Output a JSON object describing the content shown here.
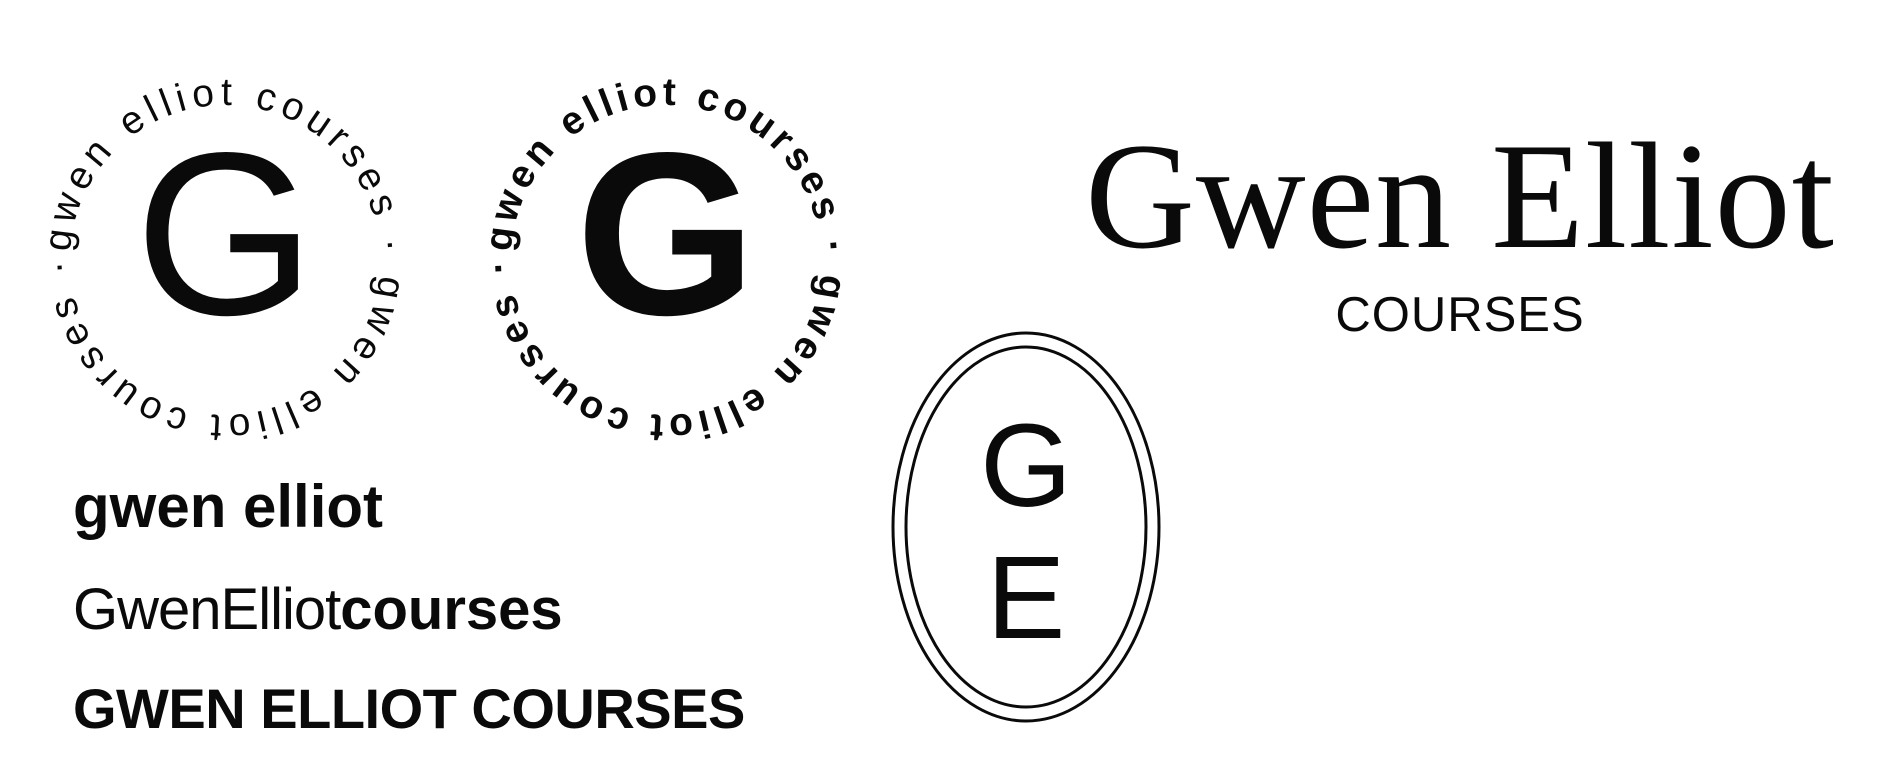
{
  "badges": [
    {
      "ring_text": "gwen elliot courses · gwen elliot courses · ",
      "monogram": "G",
      "style": "light"
    },
    {
      "ring_text": "gwen elliot courses · gwen elliot courses · ",
      "monogram": "G",
      "style": "bold"
    }
  ],
  "serif_logo": {
    "name": "Gwen Elliot",
    "subtitle": "COURSES"
  },
  "oval_monogram": {
    "top": "G",
    "bottom": "E"
  },
  "wordmarks": {
    "lowercase": "gwen elliot",
    "camel_light": "GwenElliot",
    "camel_bold": "courses",
    "uppercase": "GWEN ELLIOT COURSES"
  },
  "colors": {
    "ink": "#0a0a0a",
    "background": "#ffffff"
  }
}
